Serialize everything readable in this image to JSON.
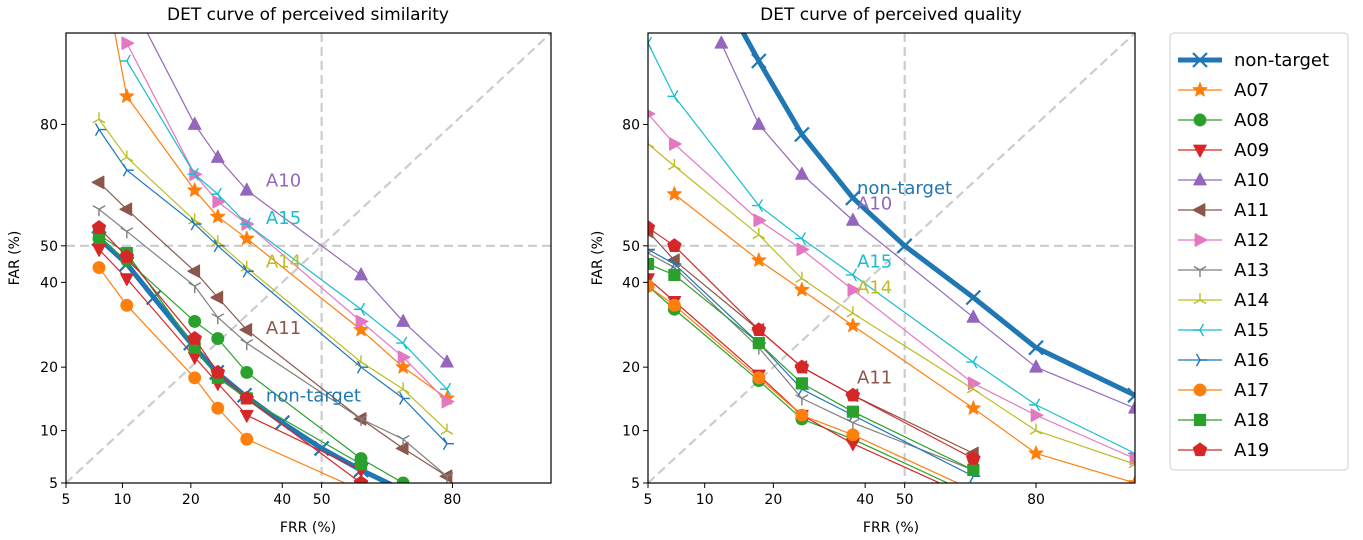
{
  "legend": {
    "position": "right (outside plots)",
    "entries": [
      {
        "name": "non-target",
        "color": "#1f77b4",
        "marker": "x"
      },
      {
        "name": "A07",
        "color": "#ff7f0e",
        "marker": "star"
      },
      {
        "name": "A08",
        "color": "#2ca02c",
        "marker": "circle"
      },
      {
        "name": "A09",
        "color": "#d62728",
        "marker": "triangle-down"
      },
      {
        "name": "A10",
        "color": "#9467bd",
        "marker": "triangle-up"
      },
      {
        "name": "A11",
        "color": "#8c564b",
        "marker": "triangle-left"
      },
      {
        "name": "A12",
        "color": "#e377c2",
        "marker": "triangle-right"
      },
      {
        "name": "A13",
        "color": "#7f7f7f",
        "marker": "tri-down"
      },
      {
        "name": "A14",
        "color": "#bcbd22",
        "marker": "tri-up"
      },
      {
        "name": "A15",
        "color": "#17becf",
        "marker": "tri-left"
      },
      {
        "name": "A16",
        "color": "#1f77b4",
        "marker": "tri-right"
      },
      {
        "name": "A17",
        "color": "#ff7f0e",
        "marker": "circle"
      },
      {
        "name": "A18",
        "color": "#2ca02c",
        "marker": "square"
      },
      {
        "name": "A19",
        "color": "#d62728",
        "marker": "pentagon"
      }
    ]
  },
  "chart_data": [
    {
      "type": "line",
      "title": "DET curve of perceived similarity",
      "xlabel": "FRR (%)",
      "ylabel": "FAR (%)",
      "scale": "probit (normal deviate) on both axes",
      "xlim": [
        5,
        93
      ],
      "ylim": [
        5,
        93
      ],
      "xticks": [
        5,
        10,
        20,
        40,
        50,
        80
      ],
      "yticks": [
        5,
        10,
        20,
        40,
        50,
        80
      ],
      "grid": "dashed light gray lines at 50% and diagonal FAR = FRR",
      "annotations": [
        {
          "text": "A10",
          "color": "#9467bd",
          "x": 36,
          "y": 66
        },
        {
          "text": "A15",
          "color": "#17becf",
          "x": 36,
          "y": 56
        },
        {
          "text": "A14",
          "color": "#bcbd22",
          "x": 36,
          "y": 44
        },
        {
          "text": "A11",
          "color": "#8c564b",
          "x": 36,
          "y": 27
        },
        {
          "text": "non-target",
          "color": "#1f77b4",
          "x": 36,
          "y": 14
        }
      ],
      "series": [
        {
          "name": "non-target",
          "color": "#1f77b4",
          "marker": "x",
          "width": 5,
          "x": [
            7.6,
            10.5,
            14,
            20,
            25,
            31,
            40,
            50,
            60,
            70
          ],
          "y": [
            52,
            45,
            36,
            25,
            19,
            15,
            11,
            8,
            6,
            4.5
          ]
        },
        {
          "name": "A07",
          "color": "#ff7f0e",
          "marker": "star",
          "x": [
            7.6,
            10.5,
            20.7,
            25.2,
            31.5,
            60,
            70,
            79
          ],
          "y": [
            98,
            85,
            65,
            58,
            52,
            28,
            20,
            14.5
          ]
        },
        {
          "name": "A08",
          "color": "#2ca02c",
          "marker": "circle",
          "x": [
            7.6,
            10.5,
            20.7,
            25.2,
            31.5,
            60,
            70
          ],
          "y": [
            52,
            46,
            30,
            26,
            19,
            7,
            5
          ]
        },
        {
          "name": "A09",
          "color": "#d62728",
          "marker": "triangle-down",
          "x": [
            7.6,
            10.5,
            20.7,
            25.2,
            31.5,
            60
          ],
          "y": [
            49,
            41,
            22,
            17,
            12,
            6
          ]
        },
        {
          "name": "A10",
          "color": "#9467bd",
          "marker": "triangle-up",
          "x": [
            10.5,
            20.7,
            25.2,
            31.5,
            60,
            70,
            79
          ],
          "y": [
            96,
            80,
            73,
            65,
            42,
            30,
            21
          ]
        },
        {
          "name": "A11",
          "color": "#8c564b",
          "marker": "triangle-left",
          "x": [
            7.6,
            10.5,
            20.7,
            25.2,
            31.5,
            60,
            70,
            79
          ],
          "y": [
            67,
            60,
            43,
            36,
            28,
            11.5,
            8,
            5.5
          ]
        },
        {
          "name": "A12",
          "color": "#e377c2",
          "marker": "triangle-right",
          "x": [
            10.5,
            20.7,
            25.2,
            31.5,
            60,
            70,
            79
          ],
          "y": [
            92,
            69,
            62,
            56,
            30,
            22,
            14
          ]
        },
        {
          "name": "A13",
          "color": "#7f7f7f",
          "marker": "tri-down",
          "x": [
            7.6,
            10.5,
            20.7,
            25.2,
            31.5,
            60,
            70,
            79
          ],
          "y": [
            60,
            54,
            39,
            31,
            25,
            11.5,
            9,
            5.5
          ]
        },
        {
          "name": "A14",
          "color": "#bcbd22",
          "marker": "tri-up",
          "x": [
            7.6,
            10.5,
            20.7,
            25.2,
            31.5,
            60,
            70,
            79
          ],
          "y": [
            81,
            73,
            57,
            51,
            44,
            21,
            16,
            10
          ]
        },
        {
          "name": "A15",
          "color": "#17becf",
          "marker": "tri-left",
          "x": [
            10.5,
            20.7,
            25.2,
            31.5,
            60,
            70,
            79
          ],
          "y": [
            90,
            69,
            64,
            56,
            33,
            25,
            16
          ]
        },
        {
          "name": "A16",
          "color": "#1f77b4",
          "marker": "tri-right",
          "x": [
            7.6,
            10.5,
            20.7,
            25.2,
            31.5,
            60,
            70,
            79
          ],
          "y": [
            79,
            70,
            56,
            50,
            43,
            20,
            14.5,
            8.5
          ]
        },
        {
          "name": "A17",
          "color": "#ff7f0e",
          "marker": "circle",
          "x": [
            7.6,
            10.5,
            20.7,
            25.2,
            31.5,
            60
          ],
          "y": [
            44,
            34,
            18,
            13,
            9,
            4.5
          ]
        },
        {
          "name": "A18",
          "color": "#2ca02c",
          "marker": "square",
          "x": [
            7.6,
            10.5,
            20.7,
            25.2,
            31.5,
            60
          ],
          "y": [
            53,
            48,
            24,
            18,
            14.5,
            6.5
          ]
        },
        {
          "name": "A19",
          "color": "#d62728",
          "marker": "pentagon",
          "x": [
            7.6,
            10.5,
            20.7,
            25.2,
            31.5,
            60
          ],
          "y": [
            55,
            47,
            26,
            19,
            14.5,
            5
          ]
        }
      ]
    },
    {
      "type": "line",
      "title": "DET curve of perceived quality",
      "xlabel": "FRR (%)",
      "ylabel": "FAR (%)",
      "scale": "probit (normal deviate) on both axes",
      "xlim": [
        5,
        93
      ],
      "ylim": [
        5,
        93
      ],
      "xticks": [
        5,
        10,
        20,
        40,
        50,
        80
      ],
      "yticks": [
        5,
        10,
        20,
        40,
        50,
        80
      ],
      "grid": "dashed light gray lines at 50% and diagonal FAR = FRR",
      "annotations": [
        {
          "text": "non-target",
          "color": "#1f77b4",
          "x": 38,
          "y": 64
        },
        {
          "text": "A10",
          "color": "#9467bd",
          "x": 38,
          "y": 60
        },
        {
          "text": "A15",
          "color": "#17becf",
          "x": 38,
          "y": 44
        },
        {
          "text": "A14",
          "color": "#bcbd22",
          "x": 38,
          "y": 37
        },
        {
          "text": "A11",
          "color": "#8c564b",
          "x": 38,
          "y": 17
        }
      ],
      "series": [
        {
          "name": "non-target",
          "color": "#1f77b4",
          "marker": "x",
          "width": 5,
          "x": [
            12,
            17.5,
            25.5,
            37,
            50,
            67,
            80,
            93
          ],
          "y": [
            96,
            90,
            78,
            63,
            50,
            36,
            24,
            15
          ]
        },
        {
          "name": "A07",
          "color": "#ff7f0e",
          "marker": "star",
          "x": [
            7,
            17.5,
            25.5,
            37,
            67,
            80,
            93
          ],
          "y": [
            64,
            46,
            38,
            29,
            13,
            7.5,
            5
          ]
        },
        {
          "name": "A08",
          "color": "#2ca02c",
          "marker": "circle",
          "x": [
            5,
            7,
            17.5,
            25.5,
            37,
            67
          ],
          "y": [
            39,
            33,
            17.5,
            11.5,
            9,
            4.2
          ]
        },
        {
          "name": "A09",
          "color": "#d62728",
          "marker": "triangle-down",
          "x": [
            5,
            7,
            17.5,
            25.5,
            37,
            67
          ],
          "y": [
            41,
            35,
            18.5,
            12,
            8.5,
            4
          ]
        },
        {
          "name": "A10",
          "color": "#9467bd",
          "marker": "triangle-up",
          "x": [
            12,
            17.5,
            25.5,
            37,
            67,
            80,
            93
          ],
          "y": [
            92,
            80,
            69,
            57,
            31,
            20,
            13
          ]
        },
        {
          "name": "A11",
          "color": "#8c564b",
          "marker": "triangle-left",
          "x": [
            5,
            7,
            17.5,
            25.5,
            37,
            67
          ],
          "y": [
            54,
            46,
            28,
            20,
            15,
            7.5
          ]
        },
        {
          "name": "A12",
          "color": "#e377c2",
          "marker": "triangle-right",
          "x": [
            5,
            7,
            17.5,
            25.5,
            37,
            67,
            80,
            93
          ],
          "y": [
            82,
            76,
            57,
            49,
            38,
            17,
            12,
            7
          ]
        },
        {
          "name": "A13",
          "color": "#7f7f7f",
          "marker": "tri-down",
          "x": [
            5,
            7,
            17.5,
            25.5,
            37,
            67
          ],
          "y": [
            48,
            44,
            24,
            14.5,
            11,
            6
          ]
        },
        {
          "name": "A14",
          "color": "#bcbd22",
          "marker": "tri-up",
          "x": [
            5,
            7,
            17.5,
            25.5,
            37,
            67,
            80,
            93
          ],
          "y": [
            76,
            71,
            53,
            41,
            32,
            16,
            10,
            6.5
          ]
        },
        {
          "name": "A15",
          "color": "#17becf",
          "marker": "tri-left",
          "x": [
            5,
            7,
            17.5,
            25.5,
            37,
            67,
            80,
            93
          ],
          "y": [
            92,
            85,
            61,
            52,
            42,
            21,
            13.5,
            7.5
          ]
        },
        {
          "name": "A16",
          "color": "#1f77b4",
          "marker": "tri-right",
          "x": [
            5,
            7,
            17.5,
            25.5,
            37,
            67
          ],
          "y": [
            49,
            45,
            25,
            16,
            12,
            5.5
          ]
        },
        {
          "name": "A17",
          "color": "#ff7f0e",
          "marker": "circle",
          "x": [
            5,
            7,
            17.5,
            25.5,
            37,
            67
          ],
          "y": [
            39,
            34,
            18,
            12,
            9.5,
            4.5
          ]
        },
        {
          "name": "A18",
          "color": "#2ca02c",
          "marker": "square",
          "x": [
            5,
            7,
            17.5,
            25.5,
            37,
            67
          ],
          "y": [
            45,
            42,
            25,
            17,
            12.5,
            6
          ]
        },
        {
          "name": "A19",
          "color": "#d62728",
          "marker": "pentagon",
          "x": [
            5,
            7,
            17.5,
            25.5,
            37,
            67
          ],
          "y": [
            55,
            50,
            28,
            20,
            15,
            7
          ]
        }
      ]
    }
  ]
}
